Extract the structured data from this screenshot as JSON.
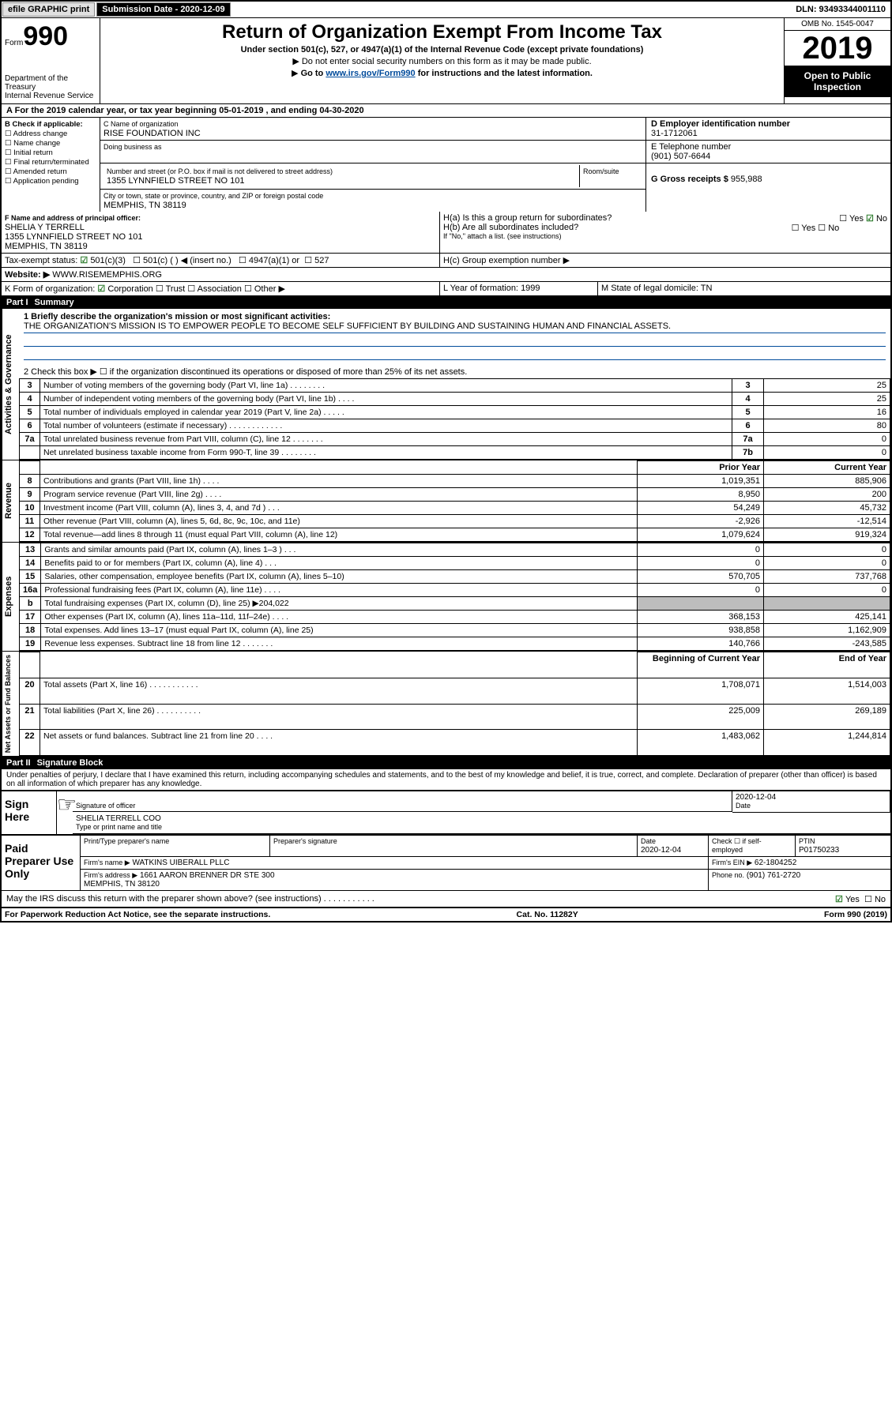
{
  "topbar": {
    "efile": "efile GRAPHIC print",
    "subdate_label": "Submission Date - 2020-12-09",
    "dln": "DLN: 93493344001110"
  },
  "header": {
    "form_word": "Form",
    "form_num": "990",
    "dept": "Department of the Treasury\nInternal Revenue Service",
    "title": "Return of Organization Exempt From Income Tax",
    "sub1": "Under section 501(c), 527, or 4947(a)(1) of the Internal Revenue Code (except private foundations)",
    "sub2": "Do not enter social security numbers on this form as it may be made public.",
    "sub3_pre": "Go to ",
    "sub3_link": "www.irs.gov/Form990",
    "sub3_post": " for instructions and the latest information.",
    "omb": "OMB No. 1545-0047",
    "year": "2019",
    "open": "Open to Public Inspection"
  },
  "A": {
    "text": "For the 2019 calendar year, or tax year beginning 05-01-2019   , and ending 04-30-2020"
  },
  "B": {
    "label": "B Check if applicable:",
    "items": [
      "Address change",
      "Name change",
      "Initial return",
      "Final return/terminated",
      "Amended return",
      "Application pending"
    ]
  },
  "C": {
    "name_lbl": "C Name of organization",
    "name": "RISE FOUNDATION INC",
    "dba_lbl": "Doing business as",
    "dba": "",
    "street_lbl": "Number and street (or P.O. box if mail is not delivered to street address)",
    "room_lbl": "Room/suite",
    "street": "1355 LYNNFIELD STREET NO 101",
    "city_lbl": "City or town, state or province, country, and ZIP or foreign postal code",
    "city": "MEMPHIS, TN  38119"
  },
  "D": {
    "lbl": "D Employer identification number",
    "val": "31-1712061"
  },
  "E": {
    "lbl": "E Telephone number",
    "val": "(901) 507-6644"
  },
  "G": {
    "lbl": "G Gross receipts $",
    "val": "955,988"
  },
  "F": {
    "lbl": "F  Name and address of principal officer:",
    "name": "SHELIA Y TERRELL",
    "addr1": "1355 LYNNFIELD STREET NO 101",
    "addr2": "MEMPHIS, TN  38119"
  },
  "H": {
    "a": "H(a)  Is this a group return for subordinates?",
    "b": "H(b)  Are all subordinates included?",
    "b_note": "If \"No,\" attach a list. (see instructions)",
    "c": "H(c)  Group exemption number ▶",
    "yes": "Yes",
    "no": "No"
  },
  "I": {
    "lbl": "Tax-exempt status:",
    "o1": "501(c)(3)",
    "o2": "501(c) (  ) ◀ (insert no.)",
    "o3": "4947(a)(1) or",
    "o4": "527"
  },
  "J": {
    "lbl": "Website: ▶",
    "val": "WWW.RISEMEMPHIS.ORG"
  },
  "K": {
    "lbl": "K Form of organization:",
    "o1": "Corporation",
    "o2": "Trust",
    "o3": "Association",
    "o4": "Other ▶"
  },
  "L": {
    "lbl": "L Year of formation:",
    "val": "1999"
  },
  "M": {
    "lbl": "M State of legal domicile:",
    "val": "TN"
  },
  "part1": {
    "bar": "Part I",
    "title": "Summary"
  },
  "summary": {
    "line1_lbl": "1  Briefly describe the organization's mission or most significant activities:",
    "line1_txt": "THE ORGANIZATION'S MISSION IS TO EMPOWER PEOPLE TO BECOME SELF SUFFICIENT BY BUILDING AND SUSTAINING HUMAN AND FINANCIAL ASSETS.",
    "line2": "2  Check this box ▶ ☐  if the organization discontinued its operations or disposed of more than 25% of its net assets.",
    "rows_ag": [
      {
        "n": "3",
        "d": "Number of voting members of the governing body (Part VI, line 1a)   .    .    .    .    .    .    .    .",
        "b": "3",
        "v": "25"
      },
      {
        "n": "4",
        "d": "Number of independent voting members of the governing body (Part VI, line 1b)   .    .    .    .",
        "b": "4",
        "v": "25"
      },
      {
        "n": "5",
        "d": "Total number of individuals employed in calendar year 2019 (Part V, line 2a)   .    .    .    .    .",
        "b": "5",
        "v": "16"
      },
      {
        "n": "6",
        "d": "Total number of volunteers (estimate if necessary)    .    .    .    .    .    .    .    .    .    .    .    .",
        "b": "6",
        "v": "80"
      },
      {
        "n": "7a",
        "d": "Total unrelated business revenue from Part VIII, column (C), line 12   .    .    .    .    .    .    .",
        "b": "7a",
        "v": "0"
      },
      {
        "n": "",
        "d": "Net unrelated business taxable income from Form 990-T, line 39   .    .    .    .    .    .    .    .",
        "b": "7b",
        "v": "0"
      }
    ],
    "hdr_prior": "Prior Year",
    "hdr_curr": "Current Year",
    "rev": [
      {
        "n": "8",
        "d": "Contributions and grants (Part VIII, line 1h)   .    .    .    .",
        "p": "1,019,351",
        "c": "885,906"
      },
      {
        "n": "9",
        "d": "Program service revenue (Part VIII, line 2g)   .    .    .    .",
        "p": "8,950",
        "c": "200"
      },
      {
        "n": "10",
        "d": "Investment income (Part VIII, column (A), lines 3, 4, and 7d )   .    .    .",
        "p": "54,249",
        "c": "45,732"
      },
      {
        "n": "11",
        "d": "Other revenue (Part VIII, column (A), lines 5, 6d, 8c, 9c, 10c, and 11e)",
        "p": "-2,926",
        "c": "-12,514"
      },
      {
        "n": "12",
        "d": "Total revenue—add lines 8 through 11 (must equal Part VIII, column (A), line 12)",
        "p": "1,079,624",
        "c": "919,324"
      }
    ],
    "exp": [
      {
        "n": "13",
        "d": "Grants and similar amounts paid (Part IX, column (A), lines 1–3 )   .    .    .",
        "p": "0",
        "c": "0"
      },
      {
        "n": "14",
        "d": "Benefits paid to or for members (Part IX, column (A), line 4)   .    .    .",
        "p": "0",
        "c": "0"
      },
      {
        "n": "15",
        "d": "Salaries, other compensation, employee benefits (Part IX, column (A), lines 5–10)",
        "p": "570,705",
        "c": "737,768"
      },
      {
        "n": "16a",
        "d": "Professional fundraising fees (Part IX, column (A), line 11e)   .    .    .    .",
        "p": "0",
        "c": "0"
      },
      {
        "n": "b",
        "d": "Total fundraising expenses (Part IX, column (D), line 25) ▶204,022",
        "p": "",
        "c": "",
        "gray": true
      },
      {
        "n": "17",
        "d": "Other expenses (Part IX, column (A), lines 11a–11d, 11f–24e)   .    .    .    .",
        "p": "368,153",
        "c": "425,141"
      },
      {
        "n": "18",
        "d": "Total expenses. Add lines 13–17 (must equal Part IX, column (A), line 25)",
        "p": "938,858",
        "c": "1,162,909"
      },
      {
        "n": "19",
        "d": "Revenue less expenses. Subtract line 18 from line 12  .    .    .    .    .    .    .",
        "p": "140,766",
        "c": "-243,585"
      }
    ],
    "hdr_beg": "Beginning of Current Year",
    "hdr_end": "End of Year",
    "net": [
      {
        "n": "20",
        "d": "Total assets (Part X, line 16)  .    .    .    .    .    .    .    .    .    .    .",
        "p": "1,708,071",
        "c": "1,514,003"
      },
      {
        "n": "21",
        "d": "Total liabilities (Part X, line 26)  .    .    .    .    .    .    .    .    .    .",
        "p": "225,009",
        "c": "269,189"
      },
      {
        "n": "22",
        "d": "Net assets or fund balances. Subtract line 21 from line 20   .    .    .    .",
        "p": "1,483,062",
        "c": "1,244,814"
      }
    ],
    "side_ag": "Activities & Governance",
    "side_rev": "Revenue",
    "side_exp": "Expenses",
    "side_net": "Net Assets or Fund Balances"
  },
  "part2": {
    "bar": "Part II",
    "title": "Signature Block",
    "decl": "Under penalties of perjury, I declare that I have examined this return, including accompanying schedules and statements, and to the best of my knowledge and belief, it is true, correct, and complete. Declaration of preparer (other than officer) is based on all information of which preparer has any knowledge."
  },
  "sign": {
    "here": "Sign Here",
    "sig_officer": "Signature of officer",
    "date": "Date",
    "date_val": "2020-12-04",
    "name": "SHELIA TERRELL COO",
    "type_lbl": "Type or print name and title"
  },
  "paid": {
    "title": "Paid Preparer Use Only",
    "pt_name_lbl": "Print/Type preparer's name",
    "pt_sig_lbl": "Preparer's signature",
    "date_lbl": "Date",
    "date_val": "2020-12-04",
    "check_lbl": "Check ☐ if self-employed",
    "ptin_lbl": "PTIN",
    "ptin": "P01750233",
    "firm_name_lbl": "Firm's name   ▶",
    "firm_name": "WATKINS UIBERALL PLLC",
    "firm_ein_lbl": "Firm's EIN ▶",
    "firm_ein": "62-1804252",
    "firm_addr_lbl": "Firm's address ▶",
    "firm_addr": "1661 AARON BRENNER DR STE 300\nMEMPHIS, TN  38120",
    "phone_lbl": "Phone no.",
    "phone": "(901) 761-2720"
  },
  "discuss": "May the IRS discuss this return with the preparer shown above? (see instructions)    .    .    .    .    .    .    .    .    .    .    .",
  "footer": {
    "pra": "For Paperwork Reduction Act Notice, see the separate instructions.",
    "cat": "Cat. No. 11282Y",
    "form": "Form 990 (2019)"
  }
}
